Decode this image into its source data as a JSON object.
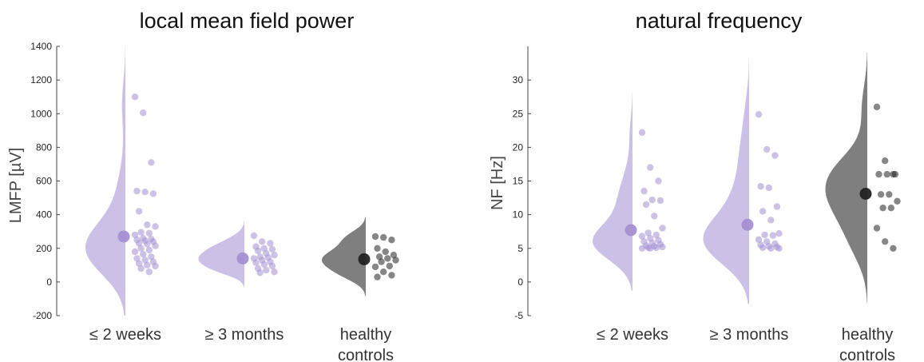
{
  "colors": {
    "purple": "#c9bde6",
    "purple_dot": "#a48fd2",
    "gray": "#7f7f7f",
    "gray_dot": "#222222",
    "axis": "#444444"
  },
  "chart_data": [
    {
      "type": "raincloud",
      "title": "local mean field power",
      "ylabel": "LMFP [µV]",
      "ylim": [
        -200,
        1400
      ],
      "yticks": [
        -200,
        0,
        200,
        400,
        600,
        800,
        1000,
        1200,
        1400
      ],
      "groups": [
        {
          "name": "≤ 2 weeks",
          "label_lines": [
            "≤ 2 weeks"
          ],
          "color": "purple",
          "mean": 270,
          "points": [
            1100,
            1005,
            710,
            540,
            535,
            525,
            420,
            340,
            330,
            295,
            290,
            280,
            260,
            255,
            250,
            245,
            240,
            230,
            225,
            215,
            200,
            190,
            180,
            165,
            150,
            140,
            130,
            120,
            110,
            100,
            95,
            80,
            60
          ]
        },
        {
          "name": "≥ 3 months",
          "label_lines": [
            "≥ 3 months"
          ],
          "color": "purple",
          "mean": 140,
          "points": [
            275,
            240,
            230,
            210,
            200,
            195,
            185,
            170,
            160,
            150,
            145,
            140,
            130,
            120,
            115,
            105,
            95,
            80,
            70,
            60,
            55
          ]
        },
        {
          "name": "healthy controls",
          "label_lines": [
            "healthy",
            "controls"
          ],
          "color": "gray",
          "mean": 135,
          "points": [
            270,
            265,
            250,
            200,
            180,
            160,
            150,
            140,
            130,
            120,
            95,
            90,
            60,
            40,
            30
          ]
        }
      ]
    },
    {
      "type": "raincloud",
      "title": "natural frequency",
      "ylabel": "NF [Hz]",
      "ylim": [
        -5,
        35
      ],
      "yticks": [
        -5,
        0,
        5,
        10,
        15,
        20,
        25,
        30
      ],
      "groups": [
        {
          "name": "≤ 2 weeks",
          "label_lines": [
            "≤ 2 weeks"
          ],
          "color": "purple",
          "mean": 7.7,
          "points": [
            22.2,
            17,
            15,
            13.5,
            12.2,
            12.1,
            11.5,
            9.8,
            8,
            7.3,
            7,
            6.8,
            6.5,
            6.2,
            6,
            5.8,
            5.6,
            5.4,
            5.3,
            5.2,
            5.1,
            5.1,
            5.0,
            5.0
          ]
        },
        {
          "name": "≥ 3 months",
          "label_lines": [
            "≥ 3 months"
          ],
          "color": "purple",
          "mean": 8.5,
          "points": [
            24.9,
            19.7,
            18.8,
            14.2,
            14,
            11.2,
            10.5,
            9.2,
            7.2,
            7,
            6.9,
            6.3,
            6,
            5.7,
            5.5,
            5.3,
            5.2,
            5.1,
            5.0,
            5.0
          ]
        },
        {
          "name": "healthy controls",
          "label_lines": [
            "healthy",
            "controls"
          ],
          "color": "gray",
          "mean": 13.1,
          "points": [
            26,
            18,
            16,
            16,
            16,
            16,
            13,
            13,
            12,
            11,
            11,
            8,
            6,
            5
          ]
        }
      ]
    }
  ]
}
